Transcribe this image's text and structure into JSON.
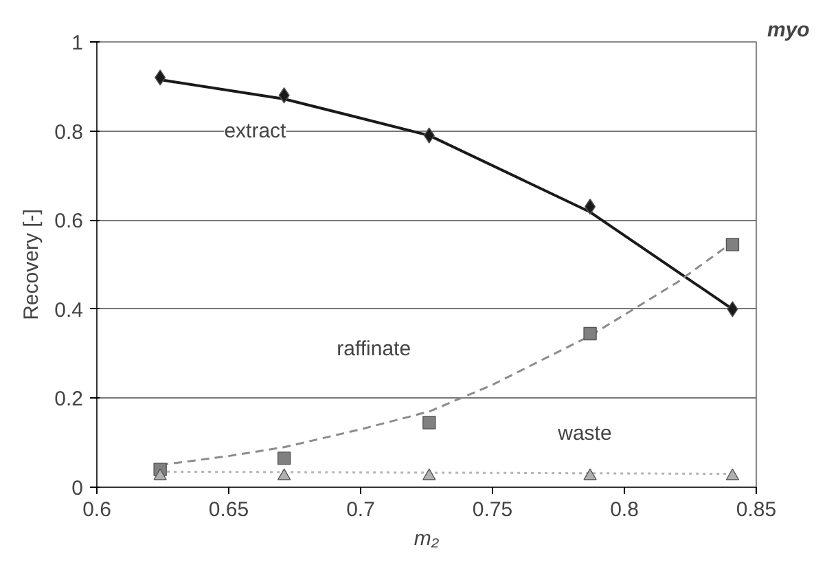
{
  "chart_data": {
    "type": "scatter",
    "xlabel": "m₂",
    "ylabel": "Recovery [-]",
    "xlim": [
      0.6,
      0.85
    ],
    "xticks": [
      0.6,
      0.65,
      0.7,
      0.75,
      0.8,
      0.85
    ],
    "ylim": [
      0,
      1
    ],
    "yticks": [
      0,
      0.2,
      0.4,
      0.6,
      0.8,
      1
    ],
    "grid": "y",
    "series": [
      {
        "type": "line",
        "color": "#1a1a1a",
        "line_style": "solid",
        "marker": "none",
        "x": [
          0.624,
          0.671,
          0.726,
          0.787,
          0.841
        ],
        "values": [
          0.915,
          0.872,
          0.79,
          0.618,
          0.4
        ]
      },
      {
        "type": "line",
        "color": "#8c8c8c",
        "line_style": "dashed",
        "marker": "none",
        "x": [
          0.624,
          0.65,
          0.671,
          0.7,
          0.726,
          0.75,
          0.787,
          0.82,
          0.841
        ],
        "values": [
          0.05,
          0.07,
          0.09,
          0.13,
          0.17,
          0.23,
          0.34,
          0.46,
          0.55
        ]
      },
      {
        "type": "line",
        "color": "#b4b4b4",
        "line_style": "dotted",
        "marker": "none",
        "x": [
          0.624,
          0.841
        ],
        "values": [
          0.035,
          0.03
        ]
      },
      {
        "color": "#1a1a1a",
        "marker": "diamond",
        "x": [
          0.624,
          0.671,
          0.726,
          0.787,
          0.841
        ],
        "values": [
          0.92,
          0.88,
          0.79,
          0.63,
          0.4
        ]
      },
      {
        "color": "#808080",
        "marker": "square",
        "x": [
          0.624,
          0.671,
          0.726,
          0.787,
          0.841
        ],
        "values": [
          0.04,
          0.065,
          0.145,
          0.345,
          0.545
        ]
      },
      {
        "color": "#b0b0b0",
        "marker": "triangle",
        "x": [
          0.624,
          0.671,
          0.726,
          0.787,
          0.841
        ],
        "values": [
          0.025,
          0.025,
          0.025,
          0.025,
          0.025
        ]
      }
    ],
    "annotations": [
      "extract",
      "raffinate",
      "waste",
      "myo"
    ]
  }
}
